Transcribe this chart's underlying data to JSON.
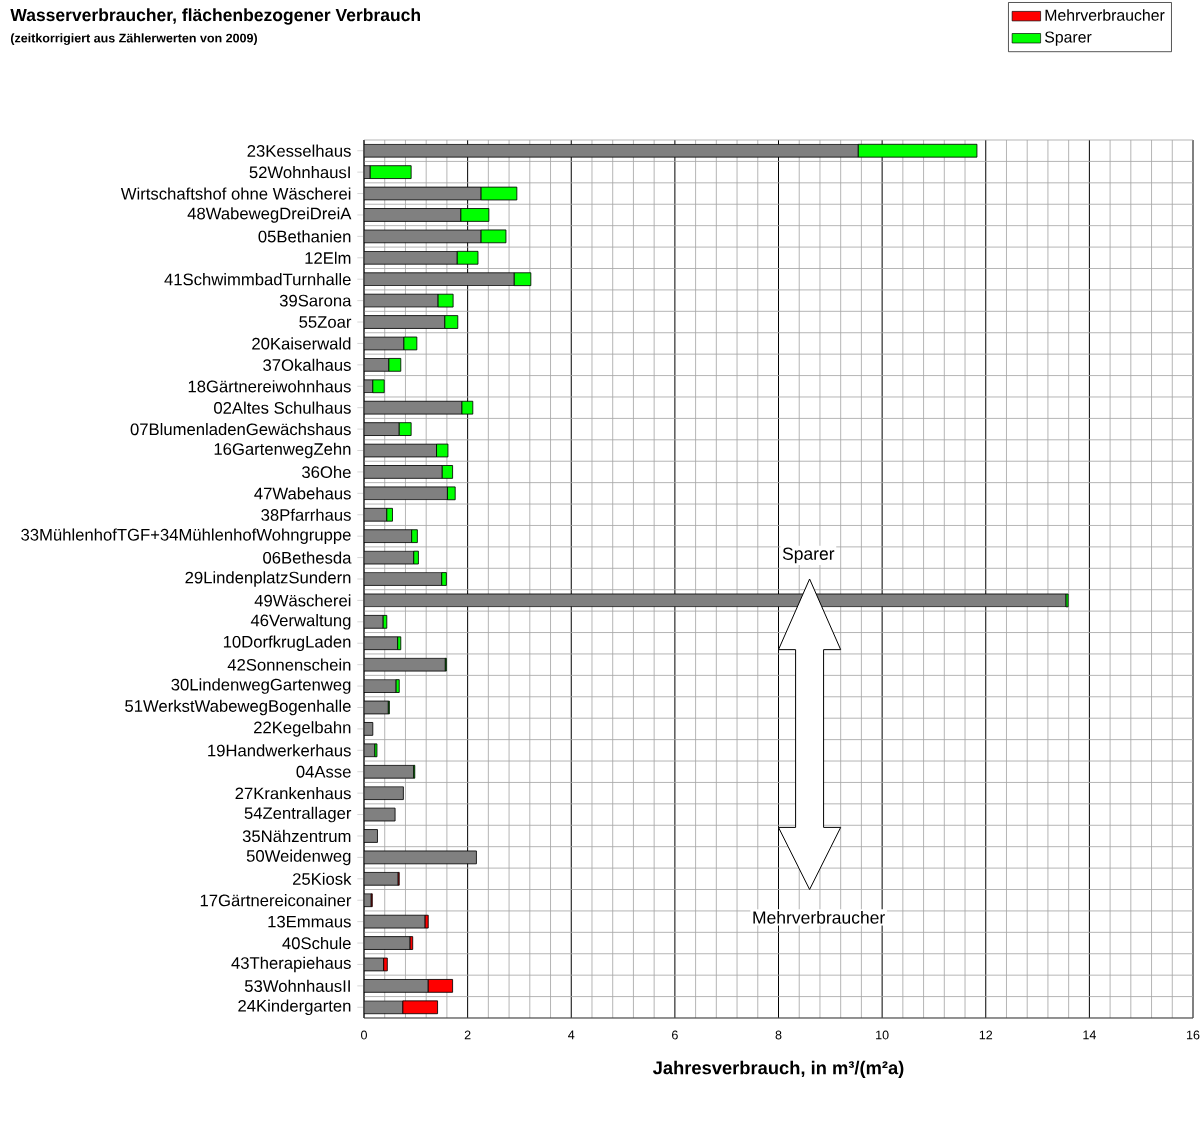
{
  "chart_data": {
    "type": "bar",
    "orientation": "horizontal",
    "stacked": true,
    "title": "Wasserverbraucher, flächenbezogener Verbrauch",
    "subtitle": "(zeitkorrigiert aus Zählerwerten von 2009)",
    "xlabel": "Jahresverbrauch, in m³/(m²a)",
    "categories": [
      "23Kesselhaus",
      "52WohnhausI",
      "Wirtschaftshof ohne Wäscherei",
      "48WabewegDreiDreiA",
      "05Bethanien",
      "12Elm",
      "41SchwimmbadTurnhalle",
      "39Sarona",
      "55Zoar",
      "20Kaiserwald",
      "37Okalhaus",
      "18Gärtnereiwohnhaus",
      "02Altes Schulhaus",
      "07BlumenladenGewächshaus",
      "16GartenwegZehn",
      "36Ohe",
      "47Wabehaus",
      "38Pfarrhaus",
      "33MühlenhofTGF+34MühlenhofWohngruppe",
      "06Bethesda",
      "29LindenplatzSundern",
      "49Wäscherei",
      "46Verwaltung",
      "10DorfkrugLaden",
      "42Sonnenschein",
      "30LindenwegGartenweg",
      "51WerkstWabewegBogenhalle",
      "22Kegelbahn",
      "19Handwerkerhaus",
      "04Asse",
      "27Krankenhaus",
      "54Zentrallager",
      "35Nähzentrum",
      "50Weidenweg",
      "25Kiosk",
      "17Gärtnereiconainer",
      "13Emmaus",
      "40Schule",
      "43Therapiehaus",
      "53WohnhausII",
      "24Kindergarten"
    ],
    "series": [
      {
        "color": "#808080",
        "values": [
          9.54,
          0.12,
          2.26,
          1.87,
          2.26,
          1.8,
          2.9,
          1.43,
          1.56,
          0.77,
          0.48,
          0.17,
          1.89,
          0.68,
          1.4,
          1.51,
          1.61,
          0.44,
          0.92,
          0.96,
          1.5,
          13.55,
          0.37,
          0.65,
          1.57,
          0.62,
          0.47,
          0.17,
          0.21,
          0.96,
          0.76,
          0.6,
          0.26,
          2.17,
          0.66,
          0.14,
          1.18,
          0.89,
          0.38,
          1.24,
          0.75
        ]
      },
      {
        "name": "Mehrverbraucher",
        "color": "#ff0000",
        "values": [
          null,
          null,
          null,
          null,
          null,
          null,
          null,
          null,
          null,
          null,
          null,
          null,
          null,
          null,
          null,
          null,
          null,
          null,
          null,
          null,
          null,
          null,
          null,
          null,
          null,
          null,
          null,
          null,
          null,
          null,
          null,
          null,
          null,
          null,
          0.02,
          0.02,
          0.06,
          0.05,
          0.07,
          0.47,
          0.67
        ]
      },
      {
        "name": "Sparer",
        "color": "#00ff00",
        "values": [
          2.29,
          0.79,
          0.69,
          0.54,
          0.48,
          0.4,
          0.32,
          0.29,
          0.25,
          0.25,
          0.23,
          0.22,
          0.21,
          0.23,
          0.22,
          0.2,
          0.15,
          0.11,
          0.11,
          0.09,
          0.09,
          0.04,
          0.07,
          0.06,
          0.02,
          0.06,
          0.02,
          null,
          0.04,
          0.02,
          null,
          null,
          null,
          null,
          null,
          null,
          null,
          null,
          null,
          null,
          null
        ]
      }
    ],
    "xlim": [
      0,
      16
    ],
    "xticks": [
      0,
      2,
      4,
      6,
      8,
      10,
      12,
      14,
      16
    ],
    "grid": true,
    "legend": "top right",
    "annotations": [
      "Sparer",
      "Mehrverbraucher"
    ]
  }
}
